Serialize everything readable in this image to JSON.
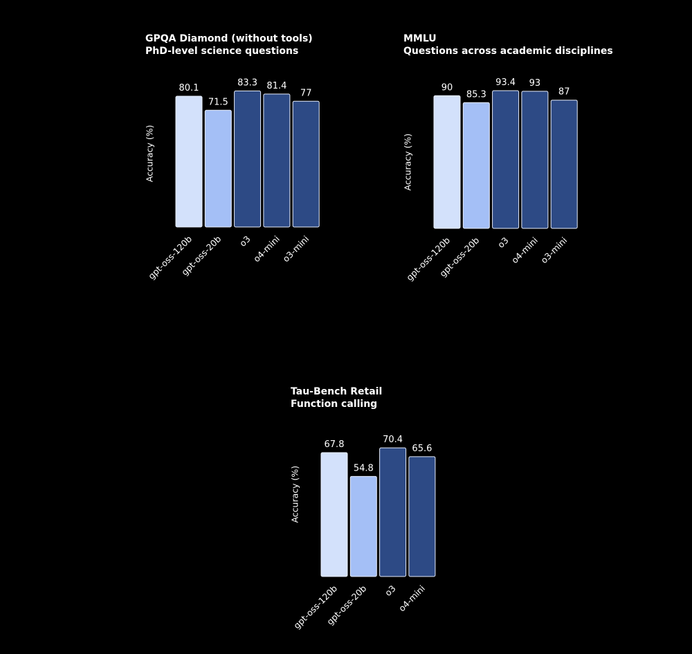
{
  "chart_data": [
    {
      "type": "bar",
      "title": "GPQA Diamond (without tools)",
      "subtitle": "PhD-level science questions",
      "ylabel": "Accuracy (%)",
      "categories": [
        "gpt-oss-120b",
        "gpt-oss-20b",
        "o3",
        "o4-mini",
        "o3-mini"
      ],
      "values": [
        80.1,
        71.5,
        83.3,
        81.4,
        77
      ],
      "colors": [
        "#d3e1fb",
        "#a4bff6",
        "#2d4a85",
        "#2d4a85",
        "#2d4a85"
      ],
      "ylim": [
        0,
        100
      ]
    },
    {
      "type": "bar",
      "title": "MMLU",
      "subtitle": "Questions across academic disciplines",
      "ylabel": "Accuracy (%)",
      "categories": [
        "gpt-oss-120b",
        "gpt-oss-20b",
        "o3",
        "o4-mini",
        "o3-mini"
      ],
      "values": [
        90,
        85.3,
        93.4,
        93,
        87
      ],
      "colors": [
        "#d3e1fb",
        "#a4bff6",
        "#2d4a85",
        "#2d4a85",
        "#2d4a85"
      ],
      "ylim": [
        0,
        100
      ]
    },
    {
      "type": "bar",
      "title": "Tau-Bench Retail",
      "subtitle": "Function calling",
      "ylabel": "Accuracy (%)",
      "categories": [
        "gpt-oss-120b",
        "gpt-oss-20b",
        "o3",
        "o4-mini"
      ],
      "values": [
        67.8,
        54.8,
        70.4,
        65.6
      ],
      "colors": [
        "#d3e1fb",
        "#a4bff6",
        "#2d4a85",
        "#2d4a85"
      ],
      "ylim": [
        0,
        100
      ]
    }
  ]
}
